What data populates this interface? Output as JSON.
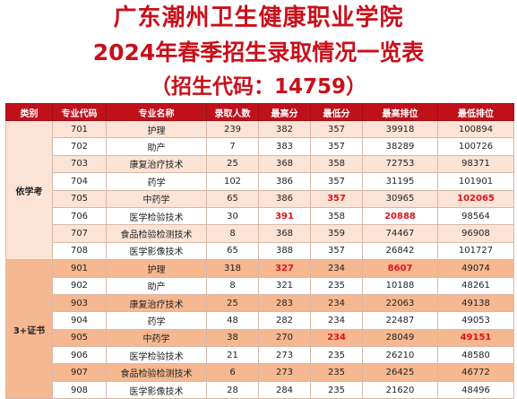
{
  "title_line1": "广东潮州卫生健康职业学院",
  "title_line2": "2024年春季招生录取情况一览表",
  "title_line3": "（招生代码：14759）",
  "headers": [
    "类别",
    "专业代码",
    "专业名称",
    "录取人数",
    "最高分",
    "最低分",
    "最高排位",
    "最低排位"
  ],
  "groups": [
    {
      "category": "依学考",
      "rows": [
        [
          "701",
          "护理",
          "239",
          "382",
          "357",
          "39918",
          "100894"
        ],
        [
          "702",
          "助产",
          "7",
          "383",
          "357",
          "38289",
          "100726"
        ],
        [
          "703",
          "康复治疗技术",
          "25",
          "368",
          "358",
          "72753",
          "98371"
        ],
        [
          "704",
          "药学",
          "102",
          "386",
          "357",
          "31195",
          "101901"
        ],
        [
          "705",
          "中药学",
          "65",
          "386",
          "357",
          "30965",
          "102065"
        ],
        [
          "706",
          "医学检验技术",
          "30",
          "391",
          "358",
          "20888",
          "98564"
        ],
        [
          "707",
          "食品检验检测技术",
          "8",
          "368",
          "359",
          "74467",
          "96908"
        ],
        [
          "708",
          "医学影像技术",
          "65",
          "388",
          "357",
          "26842",
          "101727"
        ]
      ]
    },
    {
      "category": "3+证书",
      "rows": [
        [
          "901",
          "护理",
          "318",
          "327",
          "234",
          "8607",
          "49074"
        ],
        [
          "902",
          "助产",
          "8",
          "321",
          "235",
          "10188",
          "48261"
        ],
        [
          "903",
          "康复治疗技术",
          "25",
          "283",
          "234",
          "22063",
          "49138"
        ],
        [
          "904",
          "药学",
          "48",
          "282",
          "234",
          "22487",
          "49053"
        ],
        [
          "905",
          "中药学",
          "38",
          "270",
          "234",
          "28049",
          "49151"
        ],
        [
          "906",
          "医学检验技术",
          "21",
          "273",
          "235",
          "26210",
          "48580"
        ],
        [
          "907",
          "食品检验检测技术",
          "6",
          "273",
          "235",
          "26425",
          "46772"
        ],
        [
          "908",
          "医学影像技术",
          "28",
          "284",
          "235",
          "21620",
          "48496"
        ]
      ]
    }
  ],
  "highlight_color": "#e0121c",
  "header_color": "#c0111b"
}
